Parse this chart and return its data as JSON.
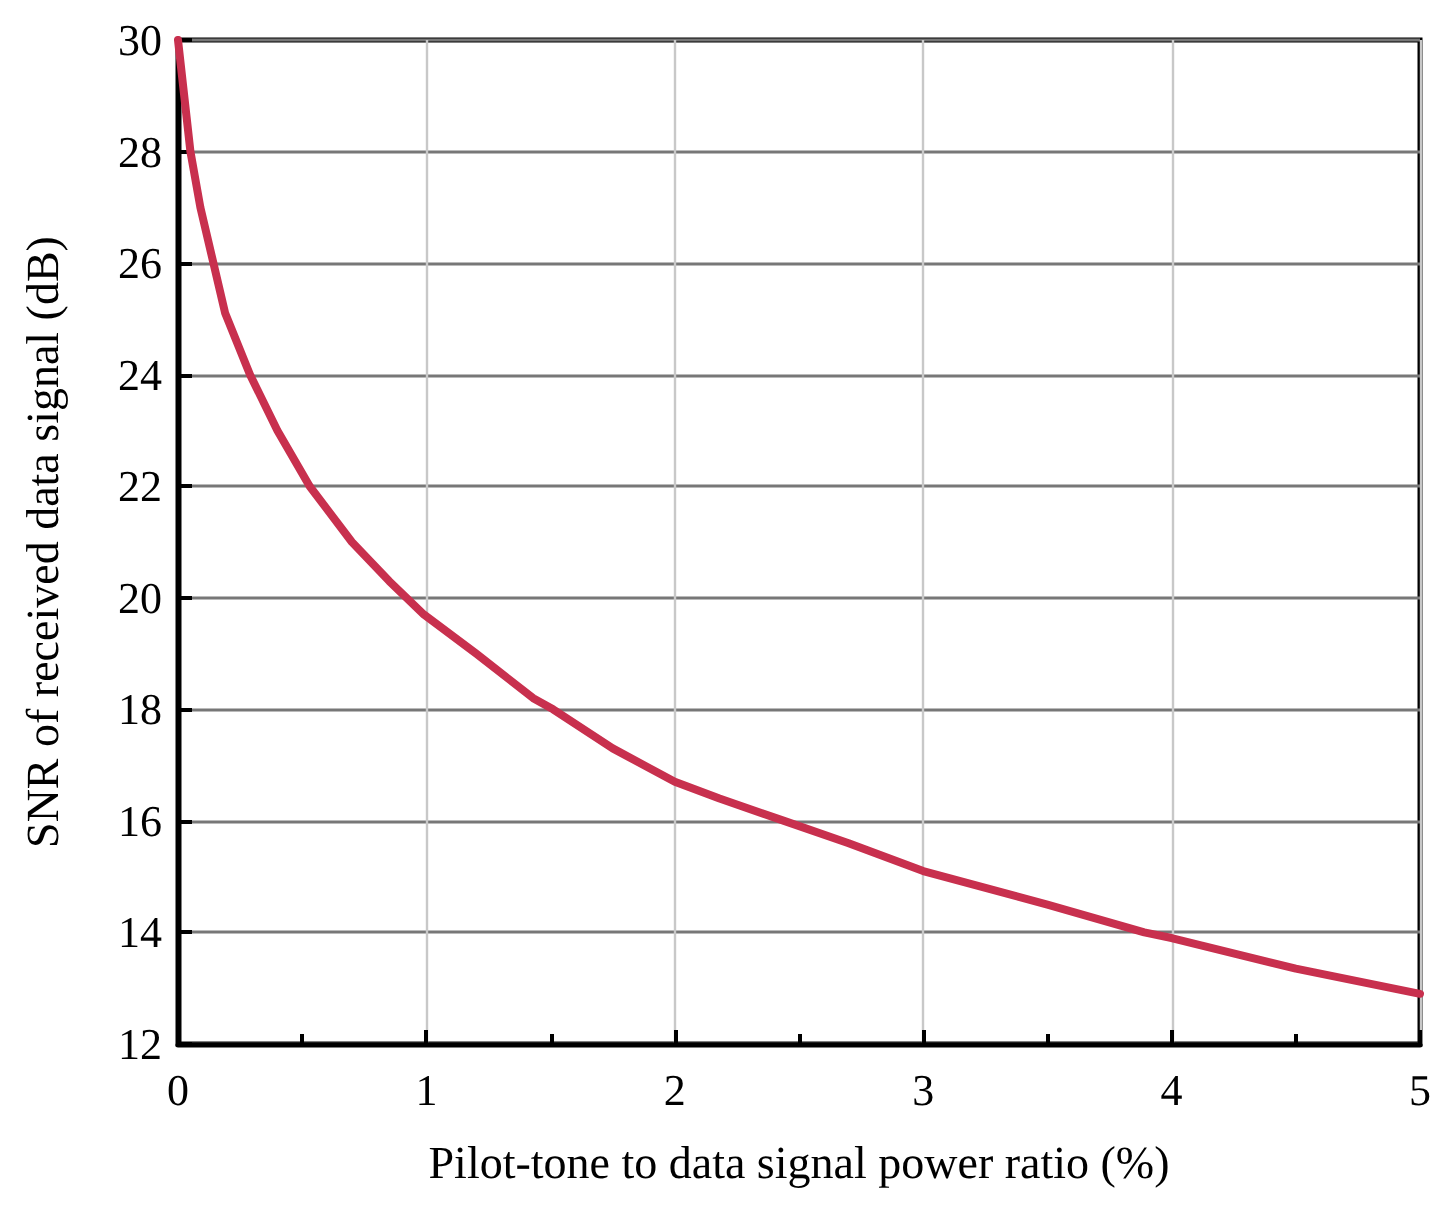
{
  "chart_data": {
    "type": "line",
    "xlabel": "Pilot-tone to data signal power ratio (%)",
    "ylabel": "SNR of received data signal (dB)",
    "x": [
      0,
      0.05,
      0.09,
      0.19,
      0.29,
      0.4,
      0.53,
      0.7,
      0.85,
      0.99,
      1.2,
      1.43,
      1.51,
      1.75,
      2,
      2.18,
      2.44,
      2.7,
      3,
      3.5,
      3.89,
      4,
      4.5,
      5
    ],
    "series": [
      {
        "color": "#c8304e",
        "values": [
          30,
          28,
          27,
          25.1,
          24,
          23,
          22,
          21,
          20.3,
          19.7,
          19,
          18.2,
          18,
          17.3,
          16.7,
          16.4,
          16,
          15.6,
          15.1,
          14.5,
          14,
          13.9,
          13.35,
          12.9
        ]
      }
    ],
    "xlim": [
      0,
      5
    ],
    "xticks": [
      0,
      1,
      2,
      3,
      4,
      5
    ],
    "ylim": [
      12,
      30
    ],
    "yticks": [
      12,
      14,
      16,
      18,
      20,
      22,
      24,
      26,
      28,
      30
    ],
    "grid": true,
    "marker": "none",
    "line_style": "solid"
  }
}
